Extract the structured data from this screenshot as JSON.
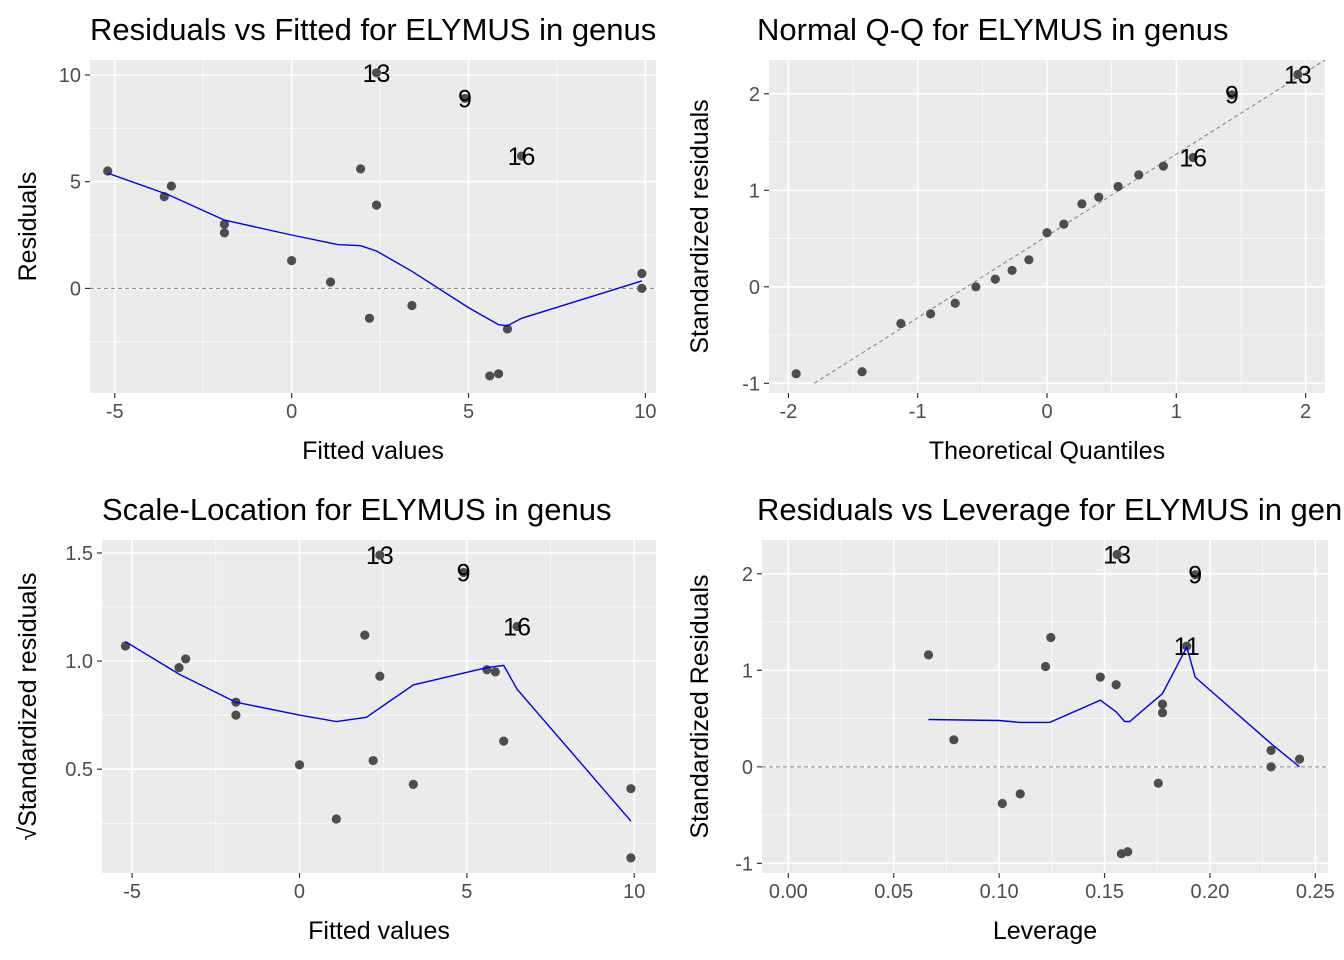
{
  "chart_data": [
    {
      "type": "scatter",
      "title": "Residuals vs Fitted for ELYMUS in genus",
      "xlabel": "Fitted values",
      "ylabel": "Residuals",
      "xlim": [
        -5.7,
        10.3
      ],
      "ylim": [
        -4.9,
        10.7
      ],
      "x_ticks": [
        -5,
        0,
        5,
        10
      ],
      "y_ticks": [
        0,
        5,
        10
      ],
      "hline": 0,
      "grid": true,
      "points": [
        {
          "x": -5.2,
          "y": 5.5
        },
        {
          "x": -3.6,
          "y": 4.3
        },
        {
          "x": -3.4,
          "y": 4.8
        },
        {
          "x": -1.9,
          "y": 3.0
        },
        {
          "x": -1.9,
          "y": 2.6
        },
        {
          "x": 0.0,
          "y": 1.3
        },
        {
          "x": 1.1,
          "y": 0.3
        },
        {
          "x": 1.95,
          "y": 5.6
        },
        {
          "x": 2.2,
          "y": -1.4
        },
        {
          "x": 2.4,
          "y": 3.9
        },
        {
          "x": 2.4,
          "y": 10.1
        },
        {
          "x": 3.4,
          "y": -0.8
        },
        {
          "x": 4.9,
          "y": 8.9
        },
        {
          "x": 5.6,
          "y": -4.1
        },
        {
          "x": 5.85,
          "y": -4.0
        },
        {
          "x": 6.1,
          "y": -1.9
        },
        {
          "x": 6.5,
          "y": 6.2
        },
        {
          "x": 9.9,
          "y": 0.7
        },
        {
          "x": 9.9,
          "y": 0.0
        }
      ],
      "smooth": [
        {
          "x": -5.2,
          "y": 5.4
        },
        {
          "x": -3.5,
          "y": 4.4
        },
        {
          "x": -1.9,
          "y": 3.2
        },
        {
          "x": 0.0,
          "y": 2.5
        },
        {
          "x": 1.3,
          "y": 2.05
        },
        {
          "x": 1.95,
          "y": 2.0
        },
        {
          "x": 2.4,
          "y": 1.75
        },
        {
          "x": 3.4,
          "y": 0.8
        },
        {
          "x": 5.0,
          "y": -0.9
        },
        {
          "x": 5.85,
          "y": -1.7
        },
        {
          "x": 6.1,
          "y": -1.75
        },
        {
          "x": 6.5,
          "y": -1.4
        },
        {
          "x": 9.9,
          "y": 0.35
        }
      ],
      "labels": [
        {
          "text": "13",
          "x": 2.4,
          "y": 10.1
        },
        {
          "text": "9",
          "x": 4.9,
          "y": 8.9
        },
        {
          "text": "16",
          "x": 6.5,
          "y": 6.2
        }
      ]
    },
    {
      "type": "scatter",
      "title": "Normal Q-Q for ELYMUS in genus",
      "xlabel": "Theoretical Quantiles",
      "ylabel": "Standardized residuals",
      "xlim": [
        -2.15,
        2.15
      ],
      "ylim": [
        -1.1,
        2.35
      ],
      "x_ticks": [
        -2,
        -1,
        0,
        1,
        2
      ],
      "y_ticks": [
        -1,
        0,
        1,
        2
      ],
      "grid": true,
      "refline": [
        {
          "x": -1.8,
          "y": -1.0
        },
        {
          "x": 2.15,
          "y": 2.35
        }
      ],
      "points": [
        {
          "x": -1.94,
          "y": -0.9
        },
        {
          "x": -1.43,
          "y": -0.88
        },
        {
          "x": -1.13,
          "y": -0.38
        },
        {
          "x": -0.9,
          "y": -0.28
        },
        {
          "x": -0.71,
          "y": -0.17
        },
        {
          "x": -0.55,
          "y": 0.0
        },
        {
          "x": -0.4,
          "y": 0.08
        },
        {
          "x": -0.27,
          "y": 0.17
        },
        {
          "x": -0.14,
          "y": 0.28
        },
        {
          "x": 0.0,
          "y": 0.56
        },
        {
          "x": 0.13,
          "y": 0.65
        },
        {
          "x": 0.27,
          "y": 0.86
        },
        {
          "x": 0.4,
          "y": 0.93
        },
        {
          "x": 0.55,
          "y": 1.04
        },
        {
          "x": 0.71,
          "y": 1.16
        },
        {
          "x": 0.9,
          "y": 1.25
        },
        {
          "x": 1.13,
          "y": 1.34
        },
        {
          "x": 1.43,
          "y": 1.99
        },
        {
          "x": 1.94,
          "y": 2.2
        }
      ],
      "labels": [
        {
          "text": "13",
          "x": 1.94,
          "y": 2.2
        },
        {
          "text": "9",
          "x": 1.43,
          "y": 1.99
        },
        {
          "text": "16",
          "x": 1.13,
          "y": 1.34
        }
      ]
    },
    {
      "type": "scatter",
      "title": "Scale-Location for ELYMUS in genus",
      "xlabel": "Fitted values",
      "ylabel": "√Standardized residuals",
      "xlim": [
        -5.9,
        10.65
      ],
      "ylim": [
        0.02,
        1.56
      ],
      "x_ticks": [
        -5,
        0,
        5,
        10
      ],
      "y_ticks": [
        0.5,
        1.0,
        1.5
      ],
      "y_tick_labels": [
        "0.5",
        "1.0",
        "1.5"
      ],
      "grid": true,
      "points": [
        {
          "x": -5.2,
          "y": 1.07
        },
        {
          "x": -3.6,
          "y": 0.97
        },
        {
          "x": -3.4,
          "y": 1.01
        },
        {
          "x": -1.9,
          "y": 0.81
        },
        {
          "x": -1.9,
          "y": 0.75
        },
        {
          "x": 0.0,
          "y": 0.52
        },
        {
          "x": 1.1,
          "y": 0.27
        },
        {
          "x": 1.95,
          "y": 1.12
        },
        {
          "x": 2.2,
          "y": 0.54
        },
        {
          "x": 2.4,
          "y": 0.93
        },
        {
          "x": 2.4,
          "y": 1.49
        },
        {
          "x": 3.4,
          "y": 0.43
        },
        {
          "x": 4.9,
          "y": 1.41
        },
        {
          "x": 5.6,
          "y": 0.96
        },
        {
          "x": 5.85,
          "y": 0.95
        },
        {
          "x": 6.1,
          "y": 0.63
        },
        {
          "x": 6.5,
          "y": 1.16
        },
        {
          "x": 9.9,
          "y": 0.41
        },
        {
          "x": 9.9,
          "y": 0.09
        }
      ],
      "smooth": [
        {
          "x": -5.2,
          "y": 1.09
        },
        {
          "x": -3.6,
          "y": 0.94
        },
        {
          "x": -1.9,
          "y": 0.81
        },
        {
          "x": 0.0,
          "y": 0.75
        },
        {
          "x": 1.1,
          "y": 0.72
        },
        {
          "x": 2.0,
          "y": 0.74
        },
        {
          "x": 3.4,
          "y": 0.89
        },
        {
          "x": 5.6,
          "y": 0.97
        },
        {
          "x": 6.1,
          "y": 0.98
        },
        {
          "x": 6.5,
          "y": 0.87
        },
        {
          "x": 9.9,
          "y": 0.26
        }
      ],
      "labels": [
        {
          "text": "13",
          "x": 2.4,
          "y": 1.49
        },
        {
          "text": "9",
          "x": 4.9,
          "y": 1.41
        },
        {
          "text": "16",
          "x": 6.5,
          "y": 1.16
        }
      ]
    },
    {
      "type": "scatter",
      "title": "Residuals vs Leverage for ELYMUS in genus",
      "xlabel": "Leverage",
      "ylabel": "Standardized Residuals",
      "xlim": [
        -0.0125,
        0.256
      ],
      "ylim": [
        -1.1,
        2.35
      ],
      "x_ticks": [
        0.0,
        0.05,
        0.1,
        0.15,
        0.2,
        0.25
      ],
      "x_tick_labels": [
        "0.00",
        "0.05",
        "0.10",
        "0.15",
        "0.20",
        "0.25"
      ],
      "y_ticks": [
        -1,
        0,
        1,
        2
      ],
      "hline": 0,
      "grid": true,
      "points": [
        {
          "x": 0.0665,
          "y": 1.16
        },
        {
          "x": 0.0785,
          "y": 0.28
        },
        {
          "x": 0.1015,
          "y": -0.38
        },
        {
          "x": 0.11,
          "y": -0.28
        },
        {
          "x": 0.122,
          "y": 1.04
        },
        {
          "x": 0.1245,
          "y": 1.34
        },
        {
          "x": 0.148,
          "y": 0.93
        },
        {
          "x": 0.1555,
          "y": 0.85
        },
        {
          "x": 0.156,
          "y": 2.2
        },
        {
          "x": 0.158,
          "y": -0.9
        },
        {
          "x": 0.161,
          "y": -0.88
        },
        {
          "x": 0.1755,
          "y": -0.17
        },
        {
          "x": 0.1775,
          "y": 0.65
        },
        {
          "x": 0.1775,
          "y": 0.56
        },
        {
          "x": 0.189,
          "y": 1.25
        },
        {
          "x": 0.193,
          "y": 1.99
        },
        {
          "x": 0.229,
          "y": 0.17
        },
        {
          "x": 0.229,
          "y": 0.0
        },
        {
          "x": 0.2425,
          "y": 0.08
        }
      ],
      "smooth": [
        {
          "x": 0.0665,
          "y": 0.49
        },
        {
          "x": 0.1,
          "y": 0.48
        },
        {
          "x": 0.11,
          "y": 0.46
        },
        {
          "x": 0.124,
          "y": 0.46
        },
        {
          "x": 0.148,
          "y": 0.69
        },
        {
          "x": 0.1555,
          "y": 0.57
        },
        {
          "x": 0.1595,
          "y": 0.47
        },
        {
          "x": 0.162,
          "y": 0.47
        },
        {
          "x": 0.1775,
          "y": 0.76
        },
        {
          "x": 0.189,
          "y": 1.24
        },
        {
          "x": 0.193,
          "y": 0.93
        },
        {
          "x": 0.229,
          "y": 0.24
        },
        {
          "x": 0.2425,
          "y": 0.0
        }
      ],
      "labels": [
        {
          "text": "13",
          "x": 0.156,
          "y": 2.2
        },
        {
          "text": "9",
          "x": 0.193,
          "y": 1.99
        },
        {
          "text": "11",
          "x": 0.189,
          "y": 1.25
        }
      ]
    }
  ]
}
